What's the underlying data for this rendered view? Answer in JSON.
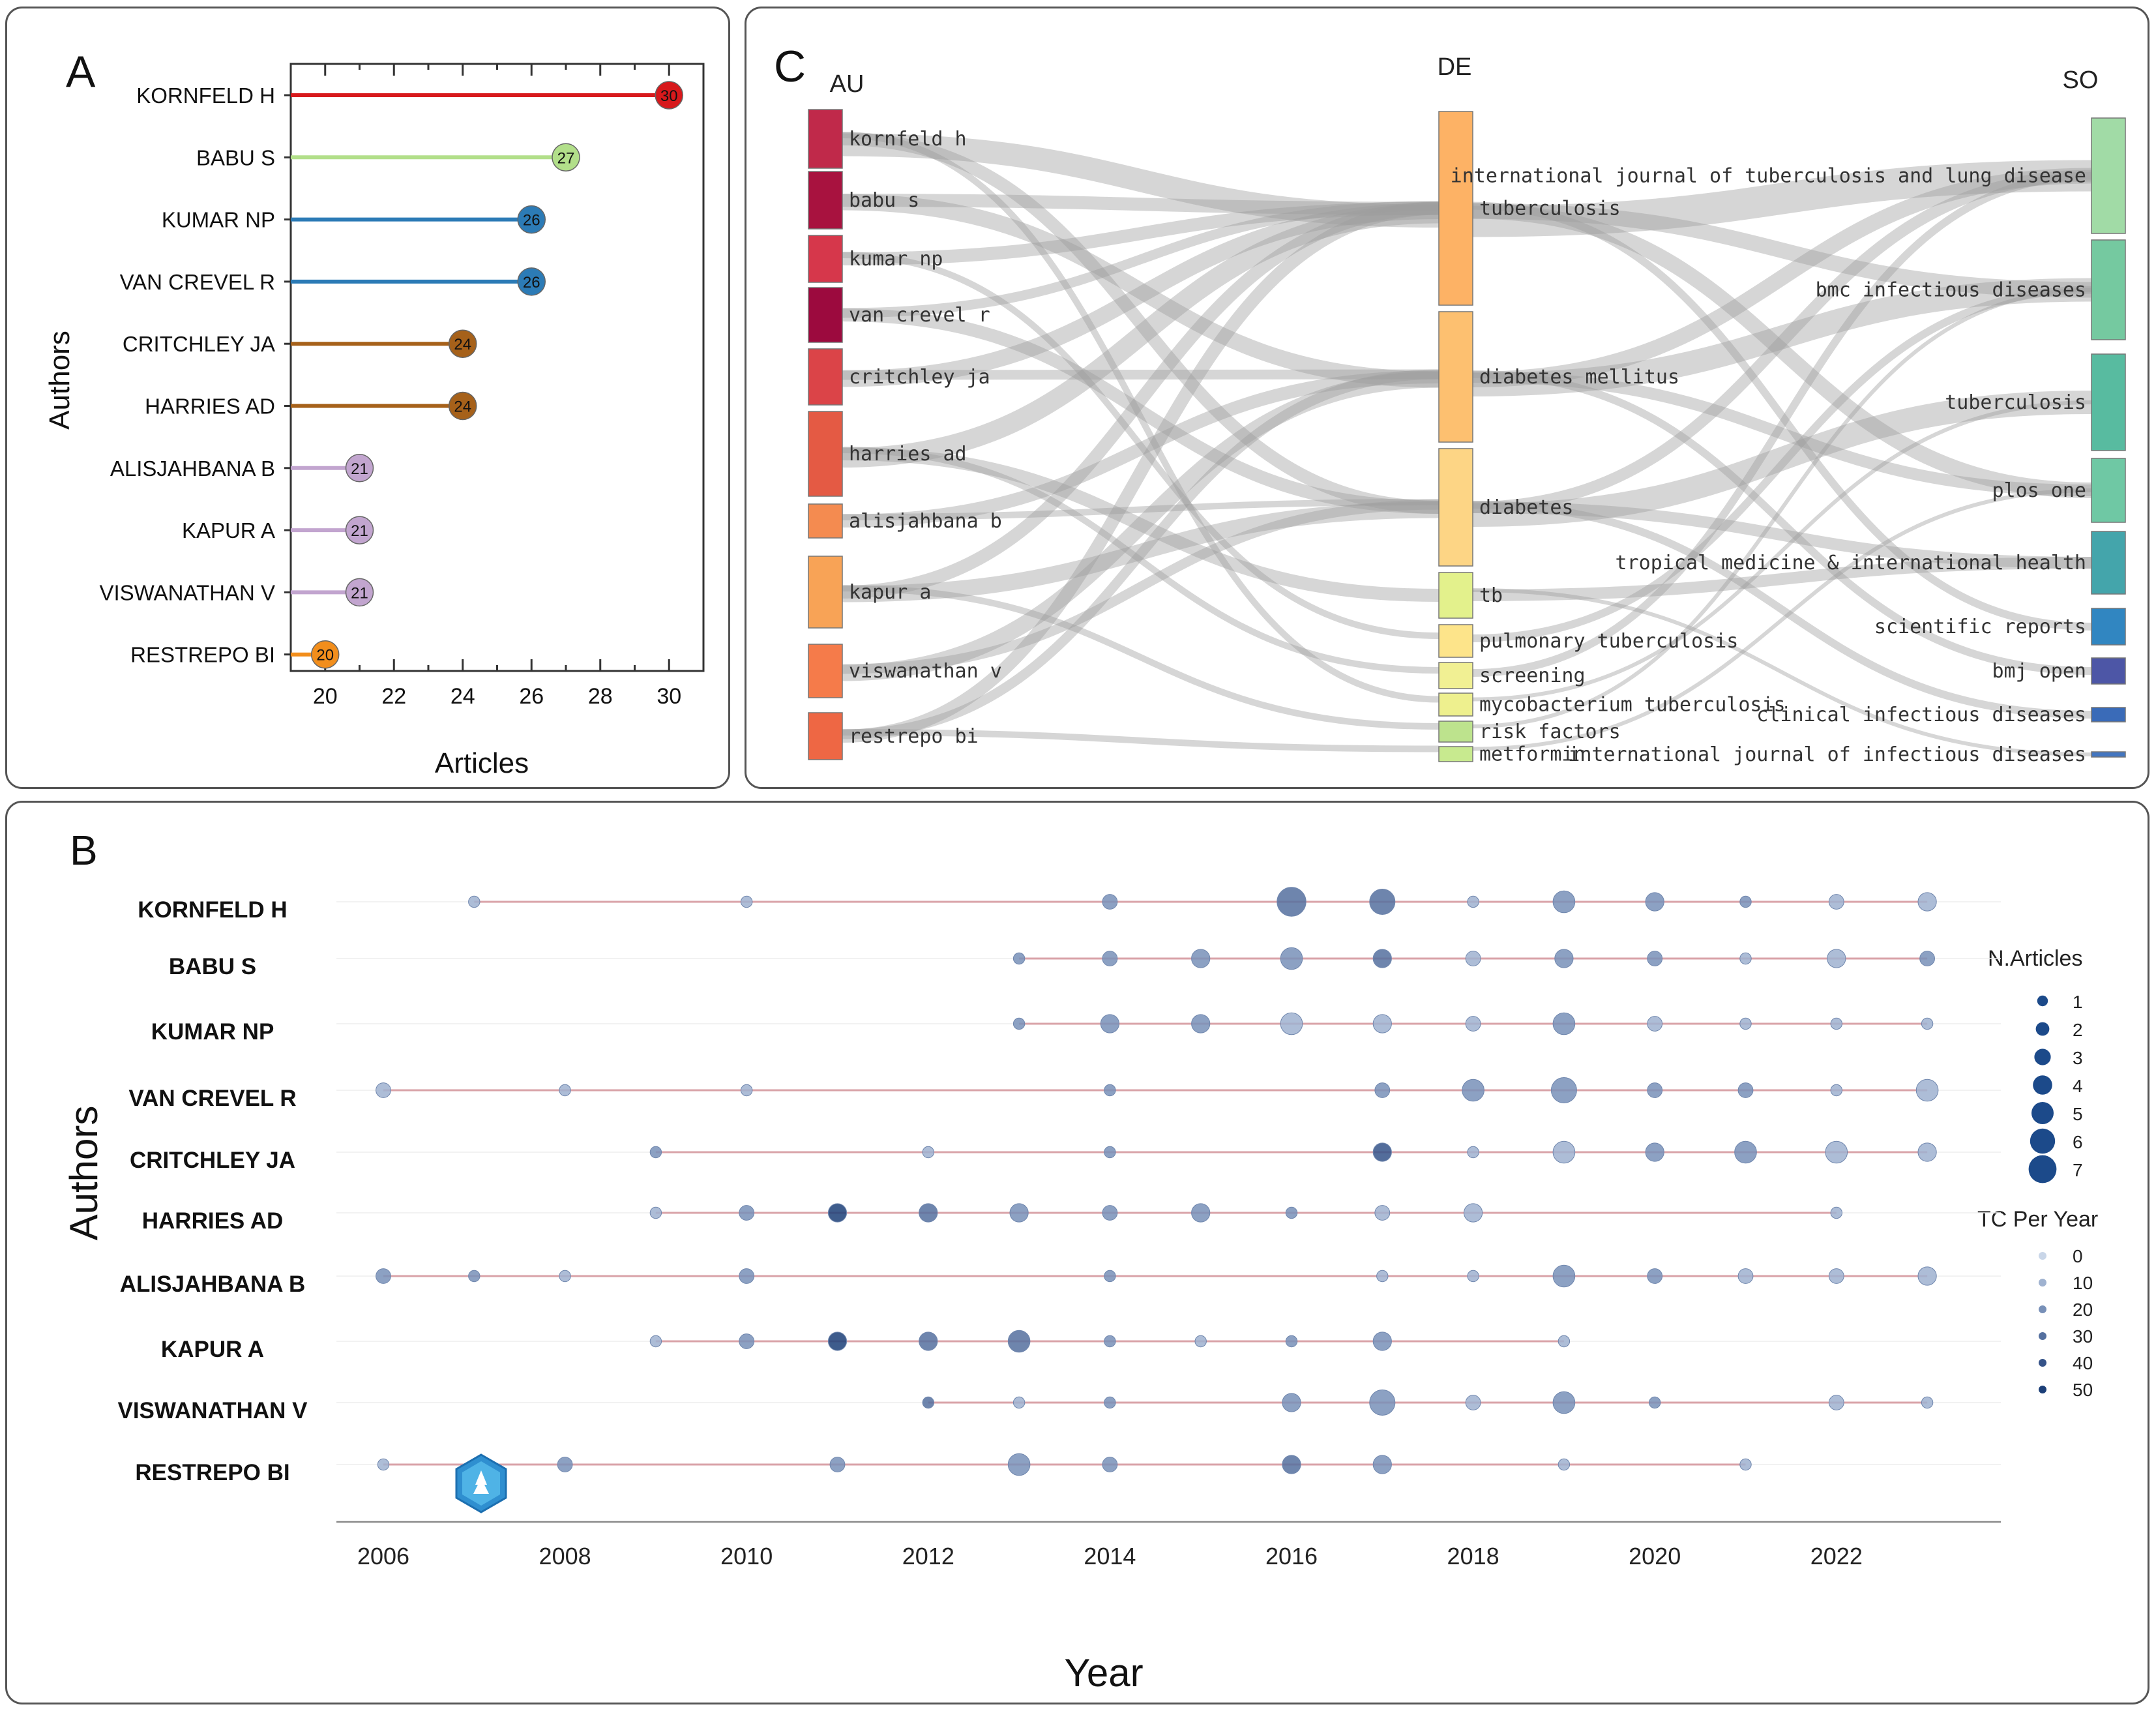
{
  "chart_data": [
    {
      "panel": "A",
      "type": "lollipop",
      "panel_label": "A",
      "xlabel": "Articles",
      "ylabel": "Authors",
      "xlim": [
        19,
        31
      ],
      "xticks": [
        "20",
        "22",
        "24",
        "26",
        "28",
        "30"
      ],
      "categories": [
        "KORNFELD H",
        "BABU S",
        "KUMAR NP",
        "VAN CREVEL R",
        "CRITCHLEY JA",
        "HARRIES AD",
        "ALISJAHBANA B",
        "KAPUR A",
        "VISWANATHAN V",
        "RESTREPO BI"
      ],
      "values": [
        30,
        27,
        26,
        26,
        24,
        24,
        21,
        21,
        21,
        20
      ],
      "value_labels": [
        "30",
        "27",
        "26",
        "26",
        "24",
        "24",
        "21",
        "21",
        "21",
        "20"
      ],
      "colors": [
        "#d7191c",
        "#b2df8a",
        "#2c7bb6",
        "#2c7bb6",
        "#a6611a",
        "#a6611a",
        "#c2a5cf",
        "#c2a5cf",
        "#c2a5cf",
        "#f28e1c"
      ]
    },
    {
      "panel": "C",
      "type": "sankey",
      "panel_label": "C",
      "columns": [
        "AU",
        "DE",
        "SO"
      ],
      "au_nodes": [
        "kornfeld h",
        "babu s",
        "kumar np",
        "van crevel r",
        "critchley ja",
        "harries ad",
        "alisjahbana b",
        "kapur a",
        "viswanathan v",
        "restrepo bi"
      ],
      "au_colors": [
        "#c0294a",
        "#a8123f",
        "#d6374b",
        "#9c0a3e",
        "#db4448",
        "#e45a44",
        "#f48b50",
        "#f8a356",
        "#f57b4a",
        "#ee6744"
      ],
      "de_nodes": [
        "tuberculosis",
        "diabetes mellitus",
        "diabetes",
        "tb",
        "pulmonary tuberculosis",
        "screening",
        "mycobacterium tuberculosis",
        "risk factors",
        "metformin"
      ],
      "de_colors": [
        "#fdb265",
        "#fdc070",
        "#fdd585",
        "#e3f18c",
        "#fde48a",
        "#f1f093",
        "#eef08e",
        "#bde38d",
        "#c8ea8f"
      ],
      "so_nodes": [
        "international journal of tuberculosis and lung disease",
        "bmc infectious diseases",
        "tuberculosis",
        "plos one",
        "tropical medicine & international health",
        "scientific reports",
        "bmj open",
        "clinical infectious diseases",
        "international journal of infectious diseases"
      ],
      "so_colors": [
        "#a1dba6",
        "#75c9a0",
        "#58bba0",
        "#6fc8a4",
        "#44a5ab",
        "#3186c1",
        "#4d56a6",
        "#3a6bb8",
        "#4376c0"
      ]
    },
    {
      "panel": "B",
      "type": "scatter",
      "panel_label": "B",
      "xlabel": "Year",
      "ylabel": "Authors",
      "xlim": [
        2005.5,
        2023.8
      ],
      "xticks": [
        "2006",
        "2008",
        "2010",
        "2012",
        "2014",
        "2016",
        "2018",
        "2020",
        "2022"
      ],
      "authors": [
        "KORNFELD H",
        "BABU S",
        "KUMAR NP",
        "VAN CREVEL R",
        "CRITCHLEY JA",
        "HARRIES AD",
        "ALISJAHBANA B",
        "KAPUR A",
        "VISWANATHAN V",
        "RESTREPO BI"
      ],
      "legend_size_title": "N.Articles",
      "legend_size_labels": [
        "1",
        "2",
        "3",
        "4",
        "5",
        "6",
        "7"
      ],
      "legend_color_title": "TC Per Year",
      "legend_color_labels": [
        "0",
        "10",
        "20",
        "30",
        "40",
        "50"
      ],
      "points": [
        [
          [
            2007,
            1,
            8
          ],
          [
            2010,
            1,
            12
          ],
          [
            2014,
            2,
            20
          ],
          [
            2016,
            6,
            30
          ],
          [
            2017,
            5,
            28
          ],
          [
            2018,
            1,
            10
          ],
          [
            2019,
            4,
            18
          ],
          [
            2020,
            3,
            20
          ],
          [
            2021,
            1,
            15
          ],
          [
            2022,
            2,
            10
          ],
          [
            2023,
            3,
            8
          ]
        ],
        [
          [
            2013,
            1,
            15
          ],
          [
            2014,
            2,
            15
          ],
          [
            2015,
            3,
            18
          ],
          [
            2016,
            4,
            20
          ],
          [
            2017,
            3,
            30
          ],
          [
            2018,
            2,
            12
          ],
          [
            2019,
            3,
            15
          ],
          [
            2020,
            2,
            15
          ],
          [
            2021,
            1,
            10
          ],
          [
            2022,
            3,
            12
          ],
          [
            2023,
            2,
            15
          ]
        ],
        [
          [
            2013,
            1,
            15
          ],
          [
            2014,
            3,
            18
          ],
          [
            2015,
            3,
            15
          ],
          [
            2016,
            4,
            12
          ],
          [
            2017,
            3,
            8
          ],
          [
            2018,
            2,
            10
          ],
          [
            2019,
            4,
            20
          ],
          [
            2020,
            2,
            12
          ],
          [
            2021,
            1,
            10
          ],
          [
            2022,
            1,
            12
          ],
          [
            2023,
            1,
            10
          ]
        ],
        [
          [
            2006,
            2,
            12
          ],
          [
            2008,
            1,
            10
          ],
          [
            2010,
            1,
            10
          ],
          [
            2014,
            1,
            20
          ],
          [
            2017,
            2,
            22
          ],
          [
            2018,
            4,
            18
          ],
          [
            2019,
            5,
            22
          ],
          [
            2020,
            2,
            20
          ],
          [
            2021,
            2,
            16
          ],
          [
            2022,
            1,
            10
          ],
          [
            2023,
            4,
            8
          ]
        ],
        [
          [
            2009,
            1,
            15
          ],
          [
            2012,
            1,
            10
          ],
          [
            2014,
            1,
            15
          ],
          [
            2017,
            3,
            38
          ],
          [
            2018,
            1,
            10
          ],
          [
            2019,
            4,
            12
          ],
          [
            2020,
            3,
            15
          ],
          [
            2021,
            4,
            22
          ],
          [
            2022,
            4,
            12
          ],
          [
            2023,
            3,
            8
          ]
        ],
        [
          [
            2009,
            1,
            12
          ],
          [
            2010,
            2,
            20
          ],
          [
            2011,
            3,
            45
          ],
          [
            2012,
            3,
            30
          ],
          [
            2013,
            3,
            22
          ],
          [
            2014,
            2,
            20
          ],
          [
            2015,
            3,
            18
          ],
          [
            2016,
            1,
            15
          ],
          [
            2017,
            2,
            8
          ],
          [
            2018,
            3,
            10
          ],
          [
            2022,
            1,
            8
          ]
        ],
        [
          [
            2006,
            2,
            20
          ],
          [
            2007,
            1,
            15
          ],
          [
            2008,
            1,
            12
          ],
          [
            2010,
            2,
            20
          ],
          [
            2014,
            1,
            18
          ],
          [
            2017,
            1,
            8
          ],
          [
            2018,
            1,
            10
          ],
          [
            2019,
            4,
            20
          ],
          [
            2020,
            2,
            20
          ],
          [
            2021,
            2,
            10
          ],
          [
            2022,
            2,
            10
          ],
          [
            2023,
            3,
            8
          ]
        ],
        [
          [
            2009,
            1,
            10
          ],
          [
            2010,
            2,
            18
          ],
          [
            2011,
            3,
            50
          ],
          [
            2012,
            3,
            28
          ],
          [
            2013,
            4,
            28
          ],
          [
            2014,
            1,
            15
          ],
          [
            2015,
            1,
            12
          ],
          [
            2016,
            1,
            15
          ],
          [
            2017,
            3,
            22
          ],
          [
            2019,
            1,
            8
          ]
        ],
        [
          [
            2012,
            1,
            30
          ],
          [
            2013,
            1,
            12
          ],
          [
            2014,
            1,
            15
          ],
          [
            2016,
            3,
            18
          ],
          [
            2017,
            5,
            22
          ],
          [
            2018,
            2,
            12
          ],
          [
            2019,
            4,
            18
          ],
          [
            2020,
            1,
            20
          ],
          [
            2022,
            2,
            12
          ],
          [
            2023,
            1,
            10
          ]
        ],
        [
          [
            2006,
            1,
            12
          ],
          [
            2008,
            2,
            15
          ],
          [
            2011,
            2,
            15
          ],
          [
            2013,
            4,
            22
          ],
          [
            2014,
            2,
            20
          ],
          [
            2016,
            3,
            25
          ],
          [
            2017,
            3,
            22
          ],
          [
            2019,
            1,
            10
          ],
          [
            2021,
            1,
            8
          ]
        ]
      ]
    }
  ]
}
